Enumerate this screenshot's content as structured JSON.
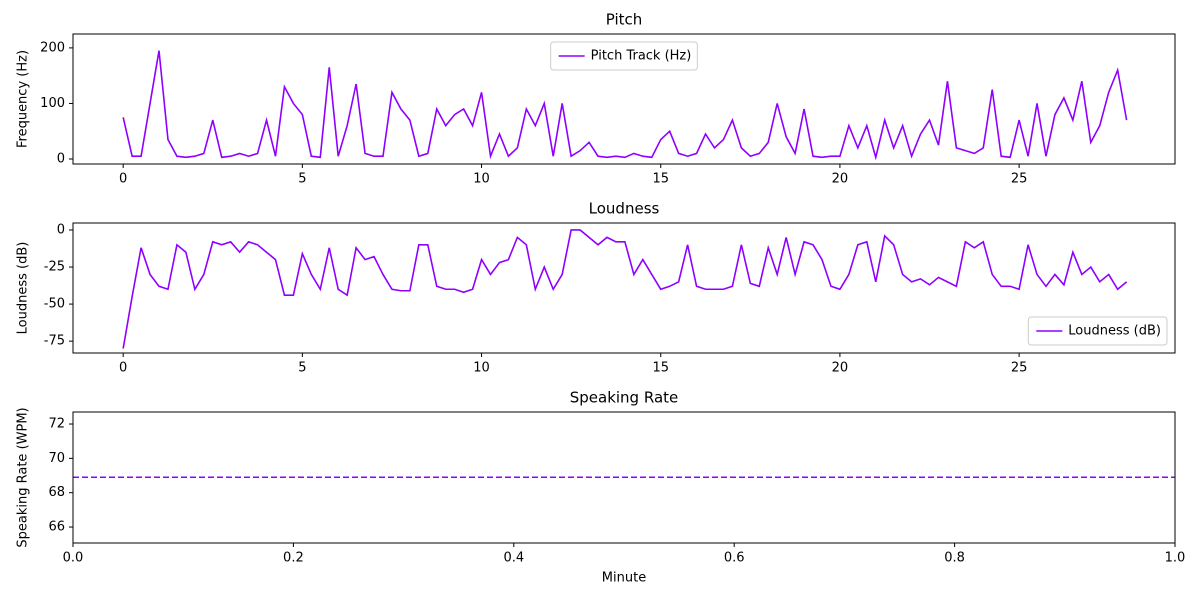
{
  "chart_data": [
    {
      "type": "line",
      "title": "Pitch",
      "ylabel": "Frequency (Hz)",
      "x": [
        0,
        0.25,
        0.5,
        0.75,
        1,
        1.25,
        1.5,
        1.75,
        2,
        2.25,
        2.5,
        2.75,
        3,
        3.25,
        3.5,
        3.75,
        4,
        4.25,
        4.5,
        4.75,
        5,
        5.25,
        5.5,
        5.75,
        6,
        6.25,
        6.5,
        6.75,
        7,
        7.25,
        7.5,
        7.75,
        8,
        8.25,
        8.5,
        8.75,
        9,
        9.25,
        9.5,
        9.75,
        10,
        10.25,
        10.5,
        10.75,
        11,
        11.25,
        11.5,
        11.75,
        12,
        12.25,
        12.5,
        12.75,
        13,
        13.25,
        13.5,
        13.75,
        14,
        14.25,
        14.5,
        14.75,
        15,
        15.25,
        15.5,
        15.75,
        16,
        16.25,
        16.5,
        16.75,
        17,
        17.25,
        17.5,
        17.75,
        18,
        18.25,
        18.5,
        18.75,
        19,
        19.25,
        19.5,
        19.75,
        20,
        20.25,
        20.5,
        20.75,
        21,
        21.25,
        21.5,
        21.75,
        22,
        22.25,
        22.5,
        22.75,
        23,
        23.25,
        23.5,
        23.75,
        24,
        24.25,
        24.5,
        24.75,
        25,
        25.25,
        25.5,
        25.75,
        26,
        26.25,
        26.5,
        26.75,
        27,
        27.25,
        27.5,
        27.75,
        28
      ],
      "series": [
        {
          "name": "Pitch Track (Hz)",
          "color": "#8f00ff",
          "values": [
            75,
            5,
            5,
            100,
            195,
            35,
            5,
            3,
            5,
            10,
            70,
            3,
            5,
            10,
            5,
            10,
            70,
            5,
            130,
            100,
            80,
            5,
            3,
            165,
            5,
            60,
            135,
            10,
            5,
            5,
            120,
            90,
            70,
            5,
            10,
            90,
            60,
            80,
            90,
            60,
            120,
            5,
            45,
            5,
            20,
            90,
            60,
            100,
            5,
            100,
            5,
            15,
            30,
            5,
            3,
            5,
            3,
            10,
            5,
            3,
            35,
            50,
            10,
            5,
            10,
            45,
            20,
            35,
            70,
            20,
            5,
            10,
            30,
            100,
            40,
            10,
            90,
            5,
            3,
            5,
            5,
            60,
            20,
            60,
            3,
            70,
            20,
            60,
            5,
            45,
            70,
            25,
            140,
            20,
            15,
            10,
            20,
            125,
            5,
            3,
            70,
            5,
            100,
            5,
            80,
            110,
            70,
            140,
            30,
            60,
            120,
            160,
            70
          ]
        }
      ],
      "xlim": [
        -1.4,
        29.35
      ],
      "ylim": [
        -9,
        225
      ],
      "xticks": [
        0,
        5,
        10,
        15,
        20,
        25
      ],
      "yticks": [
        0,
        100,
        200
      ],
      "legend": "upper center"
    },
    {
      "type": "line",
      "title": "Loudness",
      "ylabel": "Loudness (dB)",
      "x": [
        0,
        0.25,
        0.5,
        0.75,
        1,
        1.25,
        1.5,
        1.75,
        2,
        2.25,
        2.5,
        2.75,
        3,
        3.25,
        3.5,
        3.75,
        4,
        4.25,
        4.5,
        4.75,
        5,
        5.25,
        5.5,
        5.75,
        6,
        6.25,
        6.5,
        6.75,
        7,
        7.25,
        7.5,
        7.75,
        8,
        8.25,
        8.5,
        8.75,
        9,
        9.25,
        9.5,
        9.75,
        10,
        10.25,
        10.5,
        10.75,
        11,
        11.25,
        11.5,
        11.75,
        12,
        12.25,
        12.5,
        12.75,
        13,
        13.25,
        13.5,
        13.75,
        14,
        14.25,
        14.5,
        14.75,
        15,
        15.25,
        15.5,
        15.75,
        16,
        16.25,
        16.5,
        16.75,
        17,
        17.25,
        17.5,
        17.75,
        18,
        18.25,
        18.5,
        18.75,
        19,
        19.25,
        19.5,
        19.75,
        20,
        20.25,
        20.5,
        20.75,
        21,
        21.25,
        21.5,
        21.75,
        22,
        22.25,
        22.5,
        22.75,
        23,
        23.25,
        23.5,
        23.75,
        24,
        24.25,
        24.5,
        24.75,
        25,
        25.25,
        25.5,
        25.75,
        26,
        26.25,
        26.5,
        26.75,
        27,
        27.25,
        27.5,
        27.75,
        28
      ],
      "series": [
        {
          "name": "Loudness (dB)",
          "color": "#8f00ff",
          "values": [
            -80,
            -45,
            -12,
            -30,
            -38,
            -40,
            -10,
            -15,
            -40,
            -30,
            -8,
            -10,
            -8,
            -15,
            -8,
            -10,
            -15,
            -20,
            -44,
            -44,
            -16,
            -30,
            -40,
            -12,
            -40,
            -44,
            -12,
            -20,
            -18,
            -30,
            -40,
            -41,
            -41,
            -10,
            -10,
            -38,
            -40,
            -40,
            -42,
            -40,
            -20,
            -30,
            -22,
            -20,
            -5,
            -10,
            -40,
            -25,
            -40,
            -30,
            0,
            0,
            -5,
            -10,
            -5,
            -8,
            -8,
            -30,
            -20,
            -30,
            -40,
            -38,
            -35,
            -10,
            -38,
            -40,
            -40,
            -40,
            -38,
            -10,
            -36,
            -38,
            -12,
            -30,
            -5,
            -30,
            -8,
            -10,
            -20,
            -38,
            -40,
            -30,
            -10,
            -8,
            -35,
            -4,
            -10,
            -30,
            -35,
            -33,
            -37,
            -32,
            -35,
            -38,
            -8,
            -12,
            -8,
            -30,
            -38,
            -38,
            -40,
            -10,
            -30,
            -38,
            -30,
            -37,
            -15,
            -30,
            -25,
            -35,
            -30,
            -40,
            -35
          ]
        }
      ],
      "xlim": [
        -1.4,
        29.35
      ],
      "ylim": [
        -83,
        4.7
      ],
      "xticks": [
        0,
        5,
        10,
        15,
        20,
        25
      ],
      "yticks": [
        -75,
        -50,
        -25,
        0
      ],
      "legend": "lower right"
    },
    {
      "type": "hline",
      "title": "Speaking Rate",
      "ylabel": "Speaking Rate (WPM)",
      "xlabel": "Minute",
      "value": 68.9,
      "color": "#8f00ff",
      "linestyle": "dashed",
      "xlim": [
        0,
        1
      ],
      "ylim": [
        65.07,
        72.7
      ],
      "xticks": [
        {
          "value": 0,
          "label": "0.0"
        },
        0.2,
        0.4,
        0.6,
        0.8,
        {
          "value": 1,
          "label": "1.0"
        }
      ],
      "yticks": [
        66,
        68,
        70,
        72
      ]
    }
  ]
}
